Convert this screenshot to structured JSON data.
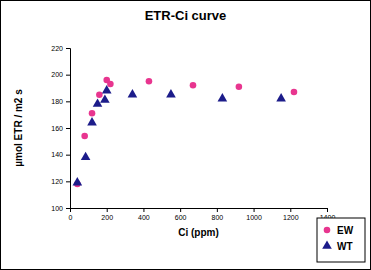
{
  "chart_data": {
    "type": "scatter",
    "title": "ETR-Ci curve",
    "x_label": "Ci (ppm)",
    "y_label": "µmol ETR / m2 s",
    "xlim": [
      0,
      1400
    ],
    "xticks": [
      0,
      200,
      400,
      600,
      800,
      1000,
      1200,
      1400
    ],
    "ylim": [
      100,
      220
    ],
    "yticks": [
      100,
      120,
      140,
      160,
      180,
      200,
      220
    ],
    "grid": false,
    "legend": "bottom-right",
    "series": [
      {
        "name": "EW",
        "color": "#e8358f",
        "marker": "circle",
        "x": [
          40,
          80,
          120,
          160,
          200,
          220,
          430,
          670,
          920,
          1220
        ],
        "values": [
          118,
          154,
          171,
          185,
          196,
          193,
          195,
          192,
          191,
          187
        ]
      },
      {
        "name": "WT",
        "color": "#1c1c8a",
        "marker": "triangle",
        "x": [
          40,
          85,
          120,
          150,
          190,
          200,
          340,
          550,
          830,
          1150
        ],
        "values": [
          119,
          138,
          164,
          178,
          181,
          188,
          185,
          185,
          182,
          182
        ]
      }
    ]
  }
}
